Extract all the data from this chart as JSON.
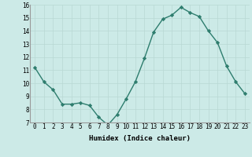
{
  "x": [
    0,
    1,
    2,
    3,
    4,
    5,
    6,
    7,
    8,
    9,
    10,
    11,
    12,
    13,
    14,
    15,
    16,
    17,
    18,
    19,
    20,
    21,
    22,
    23
  ],
  "y": [
    11.2,
    10.1,
    9.5,
    8.4,
    8.4,
    8.5,
    8.3,
    7.4,
    6.8,
    7.6,
    8.8,
    10.1,
    11.9,
    13.9,
    14.9,
    15.2,
    15.8,
    15.4,
    15.1,
    14.0,
    13.1,
    11.3,
    10.1,
    9.2
  ],
  "line_color": "#2e7d6e",
  "marker_color": "#2e7d6e",
  "bg_color": "#cceae7",
  "grid_color": "#b8d8d4",
  "xlabel": "Humidex (Indice chaleur)",
  "ylim": [
    7,
    16
  ],
  "xlim_min": -0.5,
  "xlim_max": 23.5,
  "yticks": [
    7,
    8,
    9,
    10,
    11,
    12,
    13,
    14,
    15,
    16
  ],
  "xticks": [
    0,
    1,
    2,
    3,
    4,
    5,
    6,
    7,
    8,
    9,
    10,
    11,
    12,
    13,
    14,
    15,
    16,
    17,
    18,
    19,
    20,
    21,
    22,
    23
  ],
  "xtick_labels": [
    "0",
    "1",
    "2",
    "3",
    "4",
    "5",
    "6",
    "7",
    "8",
    "9",
    "10",
    "11",
    "12",
    "13",
    "14",
    "15",
    "16",
    "17",
    "18",
    "19",
    "20",
    "21",
    "22",
    "23"
  ],
  "label_fontsize": 6.5,
  "tick_fontsize": 5.5
}
